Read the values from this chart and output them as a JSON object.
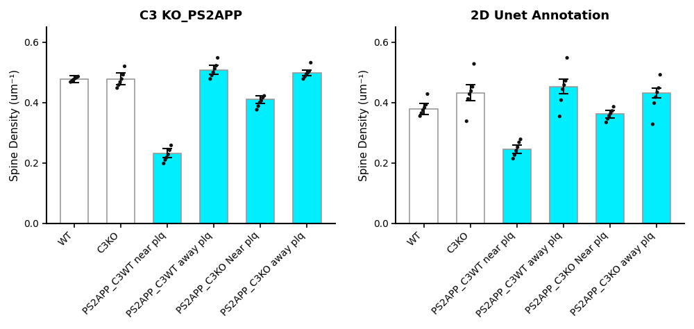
{
  "left_title": "C3 KO_PS2APP",
  "right_title": "2D Unet Annotation",
  "ylabel": "Spine Density (um⁻¹)",
  "ylim": [
    0.0,
    0.65
  ],
  "yticks": [
    0.0,
    0.2,
    0.4,
    0.6
  ],
  "categories": [
    "WT",
    "C3KO",
    "PS2APP_C3WT near plq",
    "PS2APP_C3WT away plq",
    "PS2APP_C3KO Near plq",
    "PS2APP_C3KO away plq"
  ],
  "bar_colors_left": [
    "white",
    "white",
    "#00eeff",
    "#00eeff",
    "#00eeff",
    "#00eeff"
  ],
  "bar_colors_right": [
    "white",
    "white",
    "#00eeff",
    "#00eeff",
    "#00eeff",
    "#00eeff"
  ],
  "bar_edge_color": "#999999",
  "left_means": [
    0.478,
    0.478,
    0.232,
    0.508,
    0.41,
    0.498
  ],
  "left_errors": [
    0.012,
    0.02,
    0.015,
    0.015,
    0.012,
    0.01
  ],
  "left_points": [
    [
      0.468,
      0.472,
      0.476,
      0.48,
      0.483,
      0.486
    ],
    [
      0.448,
      0.458,
      0.468,
      0.478,
      0.492,
      0.52
    ],
    [
      0.198,
      0.21,
      0.218,
      0.228,
      0.242,
      0.258
    ],
    [
      0.478,
      0.49,
      0.5,
      0.512,
      0.522,
      0.548
    ],
    [
      0.376,
      0.388,
      0.4,
      0.406,
      0.416,
      0.422
    ],
    [
      0.478,
      0.486,
      0.494,
      0.498,
      0.504,
      0.532
    ]
  ],
  "right_means": [
    0.378,
    0.432,
    0.245,
    0.453,
    0.362,
    0.432
  ],
  "right_errors": [
    0.018,
    0.026,
    0.014,
    0.024,
    0.013,
    0.016
  ],
  "right_points": [
    [
      0.355,
      0.365,
      0.375,
      0.383,
      0.393,
      0.428
    ],
    [
      0.338,
      0.412,
      0.428,
      0.438,
      0.452,
      0.528
    ],
    [
      0.214,
      0.226,
      0.24,
      0.252,
      0.268,
      0.278
    ],
    [
      0.354,
      0.408,
      0.444,
      0.458,
      0.472,
      0.548
    ],
    [
      0.334,
      0.346,
      0.356,
      0.364,
      0.372,
      0.386
    ],
    [
      0.328,
      0.398,
      0.418,
      0.434,
      0.448,
      0.492
    ]
  ],
  "background_color": "#ffffff",
  "title_fontsize": 13,
  "label_fontsize": 11,
  "tick_fontsize": 10,
  "dot_size": 14,
  "dot_color": "#111111",
  "bar_width": 0.6
}
